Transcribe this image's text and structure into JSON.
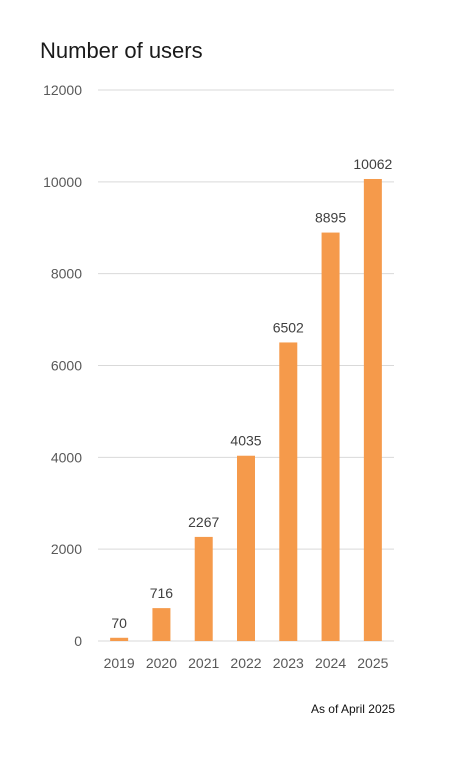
{
  "chart_data": {
    "type": "bar",
    "title": "Number of users",
    "footnote": "As of April 2025",
    "categories": [
      "2019",
      "2020",
      "2021",
      "2022",
      "2023",
      "2024",
      "2025"
    ],
    "values": [
      70,
      716,
      2267,
      4035,
      6502,
      8895,
      10062
    ],
    "data_labels": [
      "70",
      "716",
      "2267",
      "4035",
      "6502",
      "8895",
      "10062"
    ],
    "xlabel": "",
    "ylabel": "",
    "ylim": [
      0,
      12000
    ],
    "yticks": [
      "0",
      "2000",
      "4000",
      "6000",
      "8000",
      "10000",
      "12000"
    ],
    "grid": true,
    "legend": "none",
    "bar_color": "#f59a4b",
    "grid_color": "#d9d9d9",
    "axis_text_color": "#595959",
    "data_label_color": "#404040"
  }
}
